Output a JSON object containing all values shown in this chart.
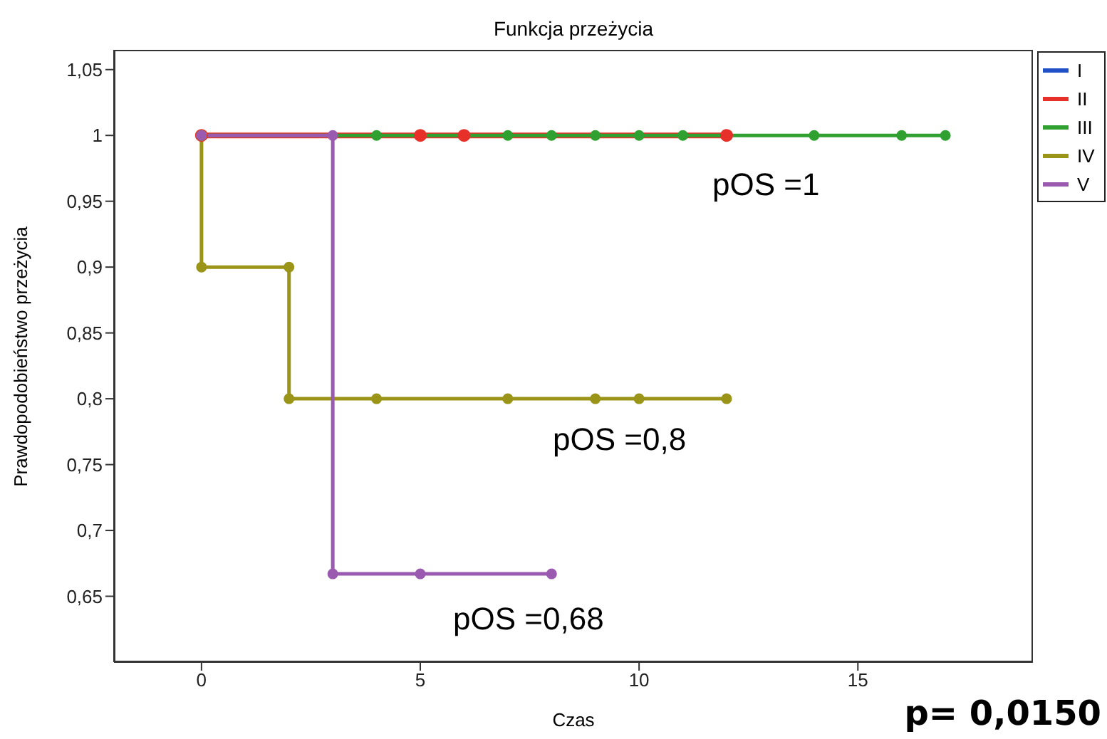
{
  "chart_data": {
    "type": "step",
    "title": "Funkcja przeżycia",
    "xlabel": "Czas",
    "ylabel": "Prawdopodobieństwo przeżycia",
    "xlim": [
      -2,
      19
    ],
    "xticks": [
      0,
      5,
      10,
      15
    ],
    "ylim": [
      0.6,
      1.065
    ],
    "yticks": [
      {
        "value": 0.65,
        "label": "0,65"
      },
      {
        "value": 0.7,
        "label": "0,7"
      },
      {
        "value": 0.75,
        "label": "0,75"
      },
      {
        "value": 0.8,
        "label": "0,8"
      },
      {
        "value": 0.85,
        "label": "0,85"
      },
      {
        "value": 0.9,
        "label": "0,9"
      },
      {
        "value": 0.95,
        "label": "0,95"
      },
      1,
      {
        "value": 1.05,
        "label": "1,05"
      }
    ],
    "series": [
      {
        "name": "I",
        "color": "#2050c8"
      },
      {
        "name": "II",
        "color": "#e8302a",
        "x": [
          0,
          5,
          6,
          12
        ],
        "values": [
          1,
          1,
          1,
          1
        ]
      },
      {
        "name": "III",
        "color": "#30a030",
        "x": [
          0,
          4,
          7,
          8,
          9,
          10,
          11,
          14,
          16,
          17
        ],
        "values": [
          1,
          1,
          1,
          1,
          1,
          1,
          1,
          1,
          1,
          1
        ]
      },
      {
        "name": "IV",
        "color": "#9a9418",
        "x": [
          0,
          0,
          2,
          2,
          4,
          7,
          9,
          10,
          12
        ],
        "values": [
          1,
          0.9,
          0.9,
          0.8,
          0.8,
          0.8,
          0.8,
          0.8,
          0.8
        ]
      },
      {
        "name": "V",
        "color": "#9a5ab0",
        "x": [
          0,
          3,
          3,
          5,
          8
        ],
        "values": [
          1,
          1,
          0.667,
          0.667,
          0.667
        ]
      }
    ],
    "marker": "circle",
    "grid": false,
    "legend": "top right",
    "annotations": [
      "pOS =1",
      "pOS =0,8",
      "pOS =0,68",
      "p= 0,0150"
    ]
  }
}
